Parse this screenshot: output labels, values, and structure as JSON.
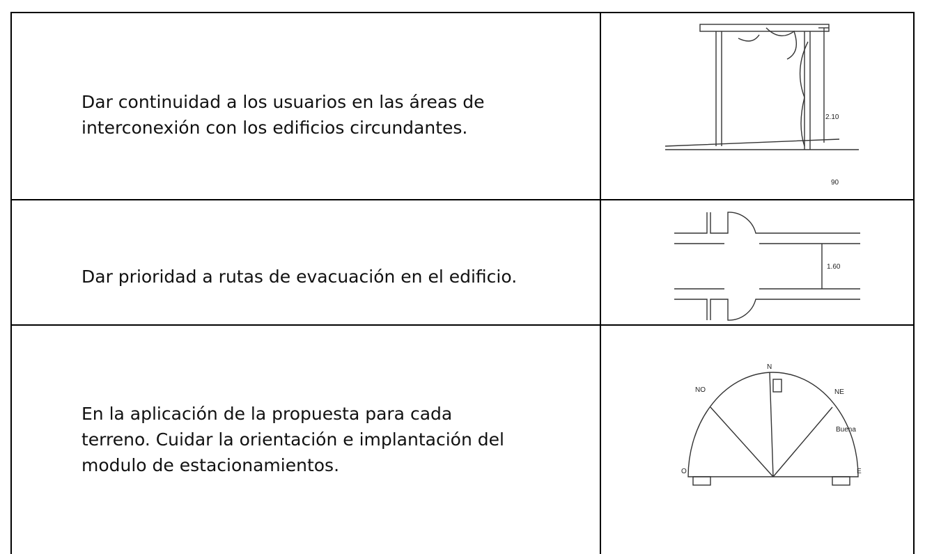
{
  "table": {
    "rows": [
      {
        "text": [
          "Dar continuidad a los usuarios en las áreas de",
          "interconexión con los edificios circundantes."
        ],
        "figure": {
          "height": "2.10",
          "depth": "90"
        }
      },
      {
        "text": [
          "Dar prioridad a rutas de evacuación en el edificio."
        ],
        "figure": {
          "width": "1.60"
        }
      },
      {
        "text": [
          "En la aplicación de la propuesta para cada",
          "terreno. Cuidar la orientación e implantación del",
          "modulo de estacionamientos."
        ],
        "figure": {
          "north": "N",
          "northwest": "NO",
          "northeast": "NE",
          "west": "O",
          "east": "E",
          "rating": "Buena"
        }
      }
    ]
  }
}
